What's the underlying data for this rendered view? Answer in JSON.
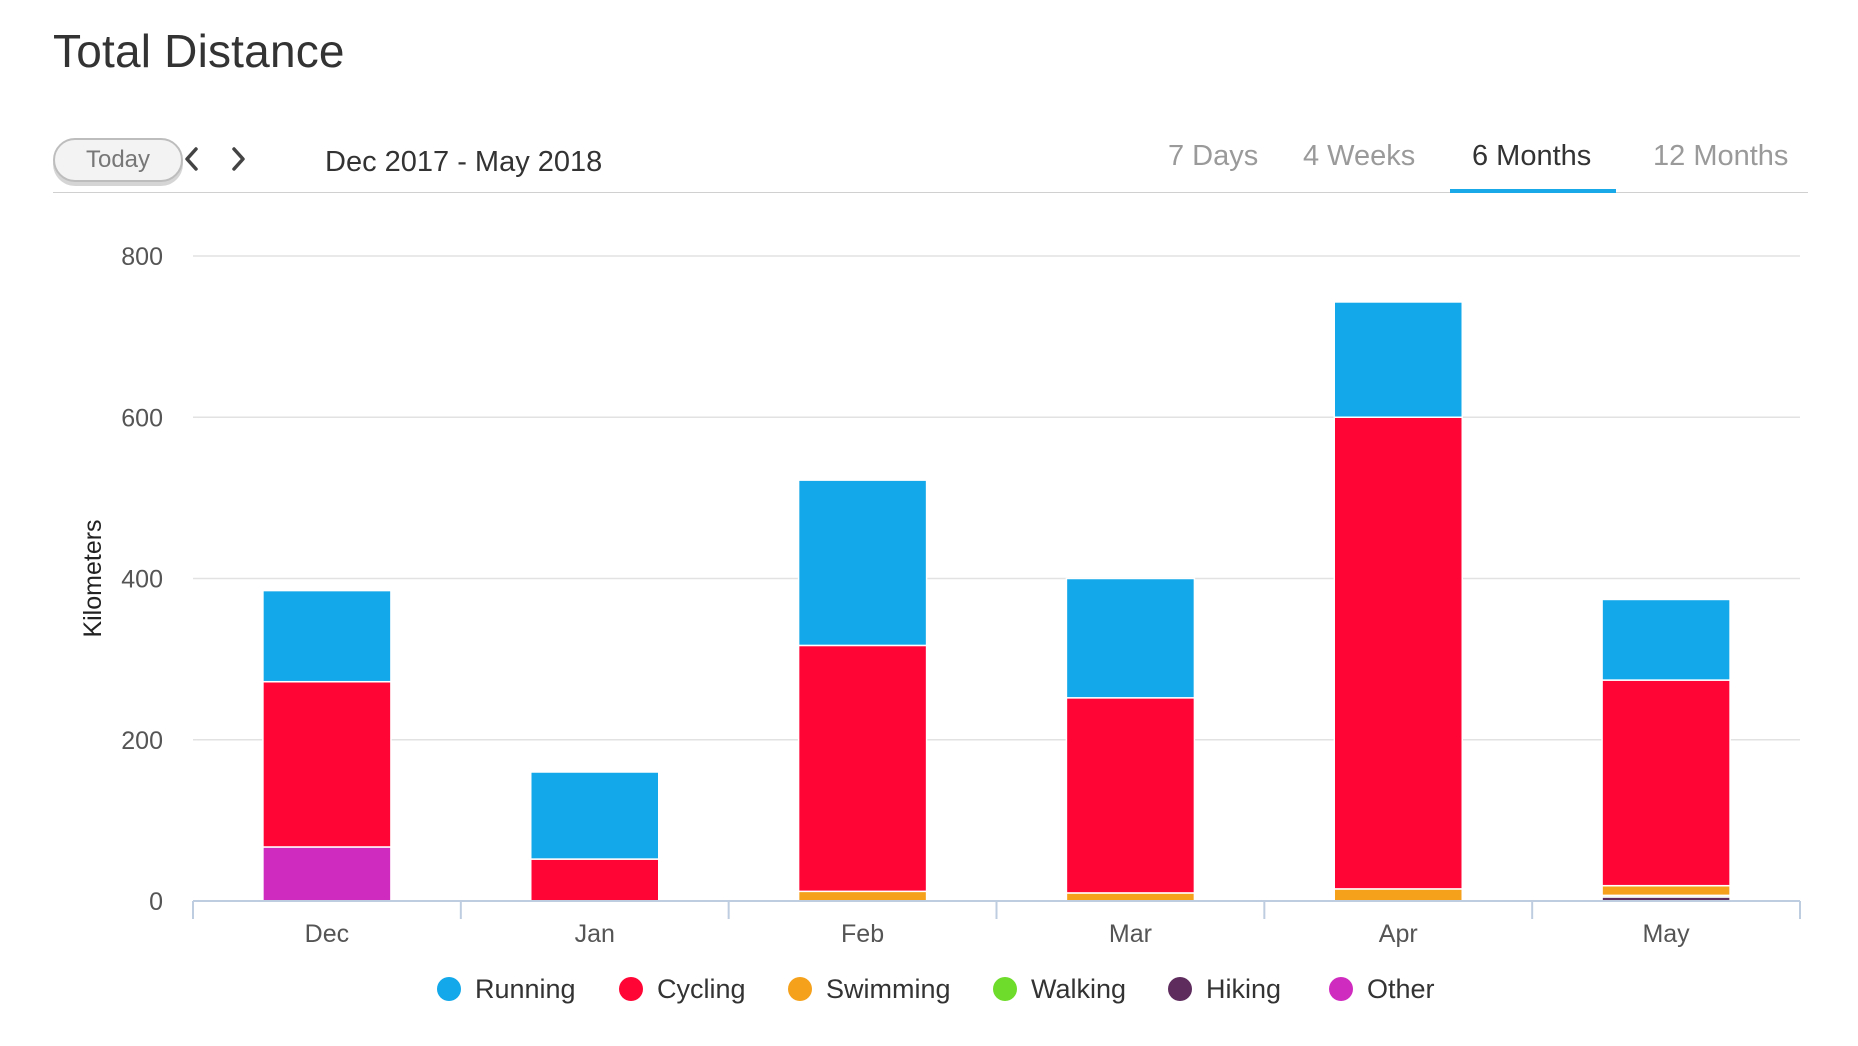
{
  "page": {
    "title": "Total Distance"
  },
  "toolbar": {
    "today_label": "Today",
    "prev_label": "Previous period",
    "next_label": "Next period",
    "date_range": "Dec 2017 - May 2018",
    "tabs": [
      {
        "label": "7 Days",
        "active": false
      },
      {
        "label": "4 Weeks",
        "active": false
      },
      {
        "label": "6 Months",
        "active": true
      },
      {
        "label": "12 Months",
        "active": false
      }
    ],
    "accent_color": "#1aa9e8"
  },
  "chart_data": {
    "type": "bar",
    "stacked": true,
    "title": "Total Distance",
    "xlabel": "",
    "ylabel": "Kilometers",
    "ylim": [
      0,
      800
    ],
    "yticks": [
      0,
      200,
      400,
      600,
      800
    ],
    "grid": true,
    "legend_position": "bottom",
    "categories": [
      "Dec",
      "Jan",
      "Feb",
      "Mar",
      "Apr",
      "May"
    ],
    "series": [
      {
        "name": "Other",
        "color": "#d02bbf",
        "values": [
          67,
          0,
          0,
          0,
          0,
          0
        ]
      },
      {
        "name": "Hiking",
        "color": "#5e2d5e",
        "values": [
          0,
          0,
          0,
          0,
          0,
          5
        ]
      },
      {
        "name": "Walking",
        "color": "#6edc2a",
        "values": [
          0,
          0,
          0,
          0,
          0,
          2
        ]
      },
      {
        "name": "Swimming",
        "color": "#f5a11c",
        "values": [
          0,
          0,
          12,
          10,
          15,
          12
        ]
      },
      {
        "name": "Cycling",
        "color": "#ff0536",
        "values": [
          205,
          52,
          305,
          242,
          585,
          255
        ]
      },
      {
        "name": "Running",
        "color": "#12a8e9",
        "values": [
          113,
          108,
          205,
          148,
          143,
          100
        ]
      }
    ],
    "legend": [
      {
        "name": "Running",
        "color": "#12a8e9"
      },
      {
        "name": "Cycling",
        "color": "#ff0536"
      },
      {
        "name": "Swimming",
        "color": "#f5a11c"
      },
      {
        "name": "Walking",
        "color": "#6edc2a"
      },
      {
        "name": "Hiking",
        "color": "#5e2d5e"
      },
      {
        "name": "Other",
        "color": "#d02bbf"
      }
    ]
  }
}
